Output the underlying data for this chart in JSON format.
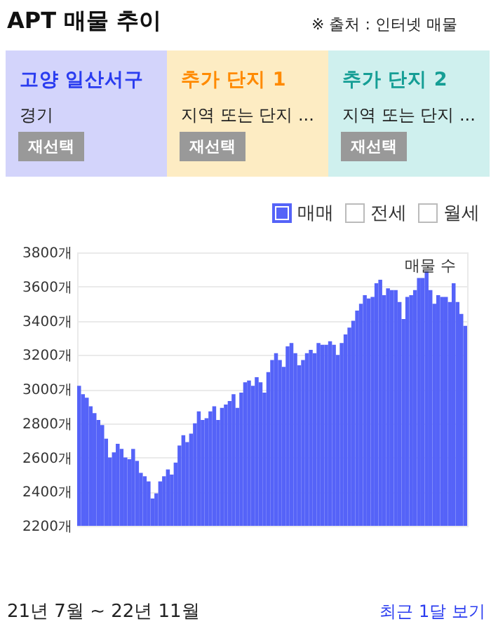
{
  "chart_data": {
    "type": "bar",
    "title": "APT 매물 추이",
    "categories": [
      null,
      null,
      null,
      null,
      null,
      null,
      null,
      null,
      null,
      null,
      null,
      null,
      null,
      null,
      null,
      null,
      null,
      null,
      null,
      null,
      null,
      null,
      null,
      null,
      null,
      null,
      null,
      null,
      null,
      null,
      null,
      null,
      null,
      null,
      null,
      null,
      null,
      null,
      null,
      null,
      null,
      null,
      null,
      null,
      null,
      null,
      null,
      null,
      null,
      null,
      null,
      null,
      null,
      null,
      null,
      null,
      null,
      null,
      null,
      null,
      null,
      null,
      null,
      null,
      null,
      null,
      null,
      null,
      null,
      null,
      null,
      null,
      null,
      null,
      null,
      null,
      null,
      null,
      null,
      null,
      null,
      null,
      null,
      null,
      null,
      null,
      null,
      null,
      null,
      null,
      null,
      null,
      null,
      null,
      null,
      null,
      null,
      null,
      null,
      null,
      null
    ],
    "series": [
      {
        "name": "매매",
        "color": "#5563f8",
        "values": [
          3020,
          2970,
          2950,
          2900,
          2860,
          2820,
          2790,
          2710,
          2600,
          2630,
          2680,
          2650,
          2600,
          2590,
          2650,
          2580,
          2510,
          2490,
          2460,
          2360,
          2390,
          2460,
          2490,
          2530,
          2500,
          2570,
          2670,
          2730,
          2690,
          2740,
          2800,
          2870,
          2820,
          2830,
          2870,
          2900,
          2820,
          2890,
          2910,
          2930,
          2970,
          2890,
          2980,
          3040,
          3050,
          3020,
          3070,
          3040,
          2980,
          3100,
          3170,
          3210,
          3170,
          3130,
          3250,
          3270,
          3210,
          3140,
          3170,
          3210,
          3230,
          3210,
          3270,
          3260,
          3260,
          3280,
          3260,
          3200,
          3270,
          3320,
          3360,
          3400,
          3460,
          3500,
          3550,
          3530,
          3540,
          3620,
          3640,
          3550,
          3590,
          3580,
          3580,
          3510,
          3410,
          3540,
          3550,
          3580,
          3650,
          3650,
          3690,
          3580,
          3500,
          3550,
          3540,
          3540,
          3510,
          3620,
          3510,
          3440,
          3370
        ]
      }
    ],
    "ylim": [
      2200,
      3800
    ],
    "yticks": [
      {
        "value": 2200,
        "label": "2200개"
      },
      {
        "value": 2400,
        "label": "2400개"
      },
      {
        "value": 2600,
        "label": "2600개"
      },
      {
        "value": 2800,
        "label": "2800개"
      },
      {
        "value": 3000,
        "label": "3000개"
      },
      {
        "value": 3200,
        "label": "3200개"
      },
      {
        "value": 3400,
        "label": "3400개"
      },
      {
        "value": 3600,
        "label": "3600개"
      },
      {
        "value": 3800,
        "label": "3800개"
      }
    ],
    "grid": "y",
    "legend": "top right",
    "tick_labels": "y",
    "annotations": [
      "※ 출처 : 인터넷 매물",
      "고양 일산서구",
      "경기",
      "재선택",
      "추가 단지 1",
      "지역 또는 단지 ...",
      "재선택",
      "추가 단지 2",
      "지역 또는 단지 ...",
      "재선택",
      "전세",
      "월세",
      "매물 수",
      "21년 7월 ~ 22년 11월",
      "최근 1달 보기"
    ]
  }
}
